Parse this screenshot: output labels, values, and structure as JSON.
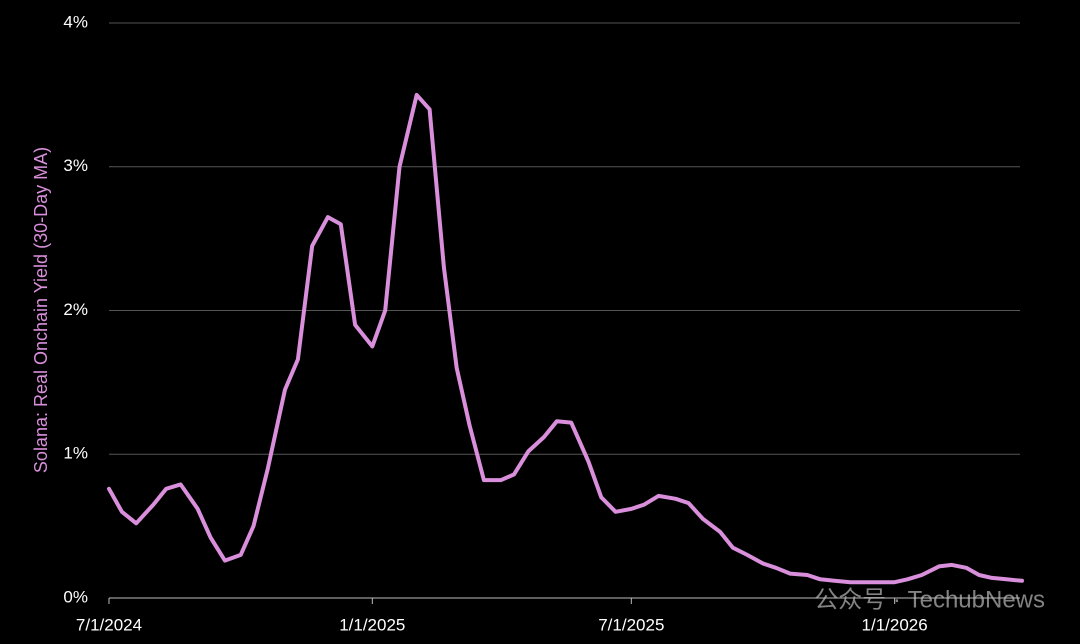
{
  "chart_data": {
    "type": "line",
    "y_label": "Solana: Real Onchain Yield (30-Day MA)",
    "watermark": "公众号 · TechubNews",
    "x": [
      "7/1/2024",
      "7/10/2024",
      "7/20/2024",
      "8/1/2024",
      "8/10/2024",
      "8/20/2024",
      "9/1/2024",
      "9/10/2024",
      "9/20/2024",
      "10/1/2024",
      "10/10/2024",
      "10/20/2024",
      "11/1/2024",
      "11/10/2024",
      "11/20/2024",
      "12/1/2024",
      "12/10/2024",
      "12/20/2024",
      "1/1/2025",
      "1/10/2025",
      "1/20/2025",
      "2/1/2025",
      "2/10/2025",
      "2/20/2025",
      "3/1/2025",
      "3/10/2025",
      "3/20/2025",
      "4/1/2025",
      "4/10/2025",
      "4/20/2025",
      "5/1/2025",
      "5/10/2025",
      "5/20/2025",
      "6/1/2025",
      "6/10/2025",
      "6/20/2025",
      "7/1/2025",
      "7/10/2025",
      "7/20/2025",
      "8/1/2025",
      "8/10/2025",
      "8/20/2025",
      "9/1/2025",
      "9/10/2025",
      "9/20/2025",
      "10/1/2025",
      "10/10/2025",
      "10/20/2025",
      "11/1/2025",
      "11/10/2025",
      "11/20/2025",
      "12/1/2025",
      "12/10/2025",
      "12/20/2025",
      "1/1/2026",
      "1/10/2026",
      "1/20/2026",
      "2/1/2026",
      "2/10/2026",
      "2/20/2026",
      "3/1/2026",
      "3/10/2026",
      "3/20/2026",
      "3/31/2026"
    ],
    "series": [
      {
        "name": "Solana",
        "color": "#d98fdb",
        "values": [
          0.76,
          0.6,
          0.52,
          0.65,
          0.76,
          0.79,
          0.62,
          0.42,
          0.26,
          0.3,
          0.5,
          0.9,
          1.45,
          1.66,
          2.45,
          2.65,
          2.6,
          1.9,
          1.75,
          2.0,
          3.0,
          3.5,
          3.4,
          2.3,
          1.6,
          1.2,
          0.82,
          0.82,
          0.86,
          1.02,
          1.12,
          1.23,
          1.22,
          0.95,
          0.7,
          0.6,
          0.62,
          0.65,
          0.71,
          0.69,
          0.66,
          0.55,
          0.46,
          0.35,
          0.3,
          0.24,
          0.21,
          0.17,
          0.16,
          0.13,
          0.12,
          0.11,
          0.11,
          0.11,
          0.11,
          0.13,
          0.16,
          0.22,
          0.23,
          0.21,
          0.16,
          0.14,
          0.13,
          0.12
        ]
      }
    ],
    "xlim": [
      "7/1/2024",
      "3/31/2026"
    ],
    "xticks": [
      "7/1/2024",
      "1/1/2025",
      "7/1/2025",
      "1/1/2026"
    ],
    "ylim": [
      0,
      4
    ],
    "yticks": [
      {
        "value": 0,
        "label": "0%"
      },
      {
        "value": 1,
        "label": "1%"
      },
      {
        "value": 2,
        "label": "2%"
      },
      {
        "value": 3,
        "label": "3%"
      },
      {
        "value": 4,
        "label": "4%"
      }
    ],
    "grid": true
  }
}
